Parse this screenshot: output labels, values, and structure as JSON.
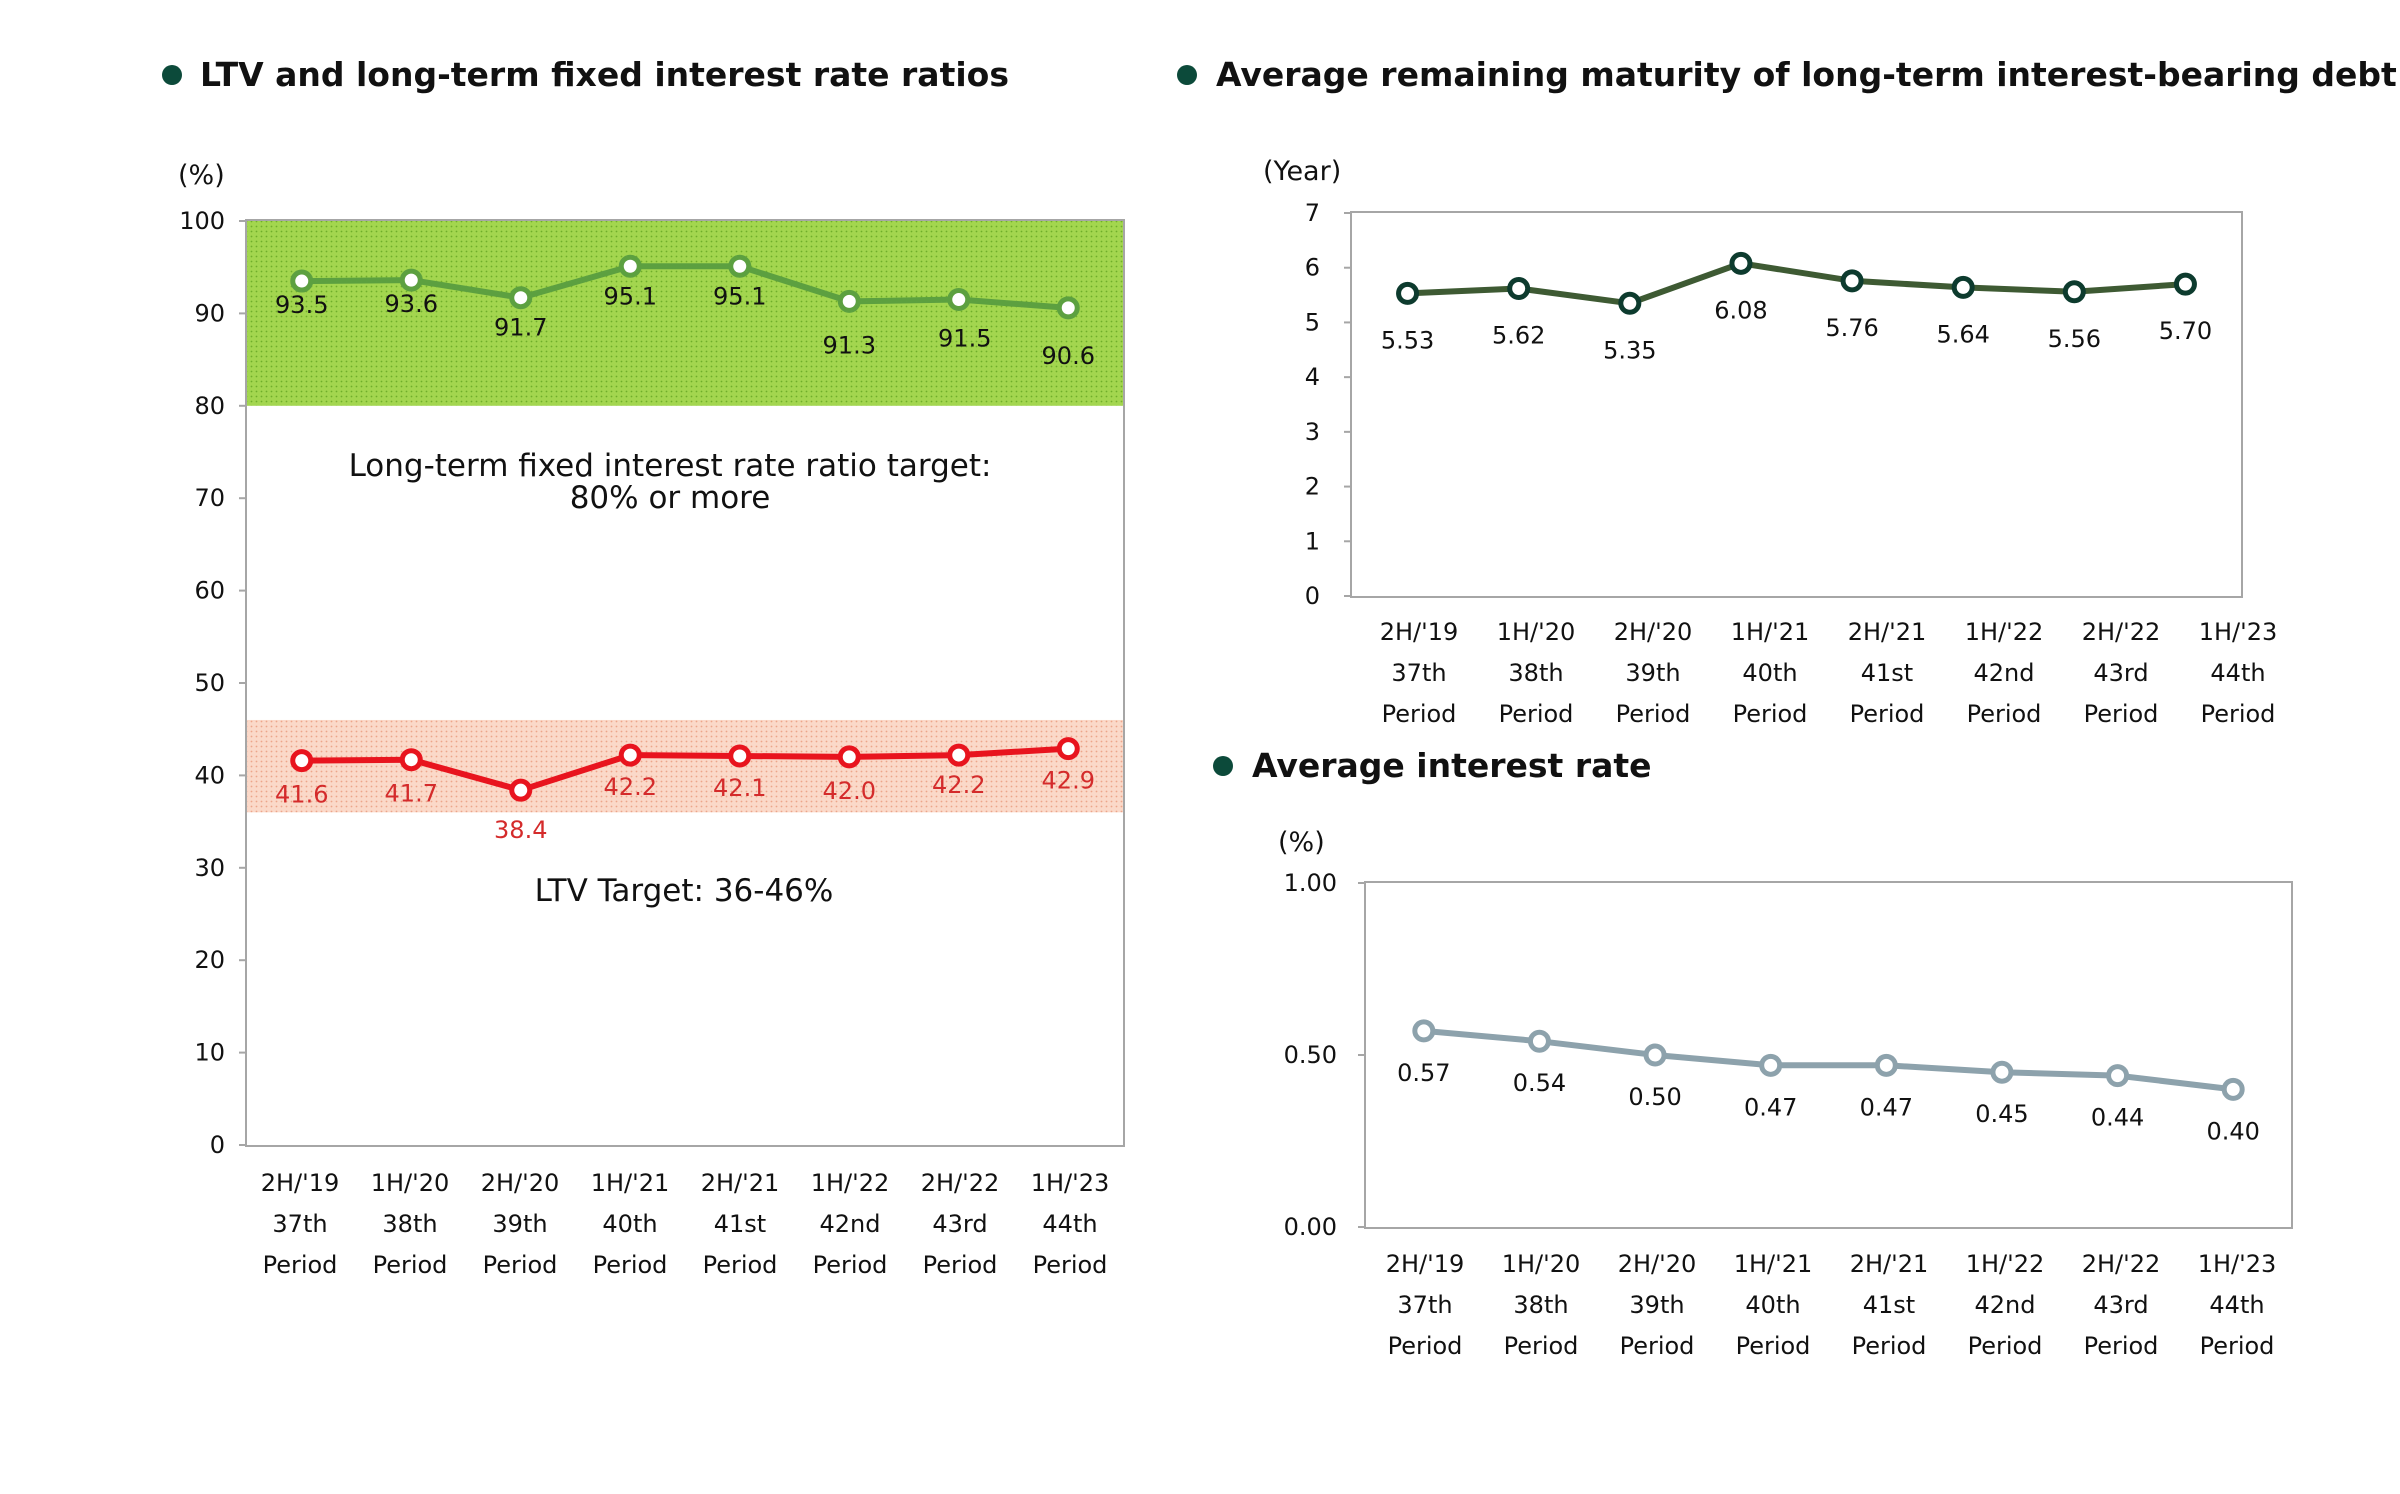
{
  "chart_data": [
    {
      "type": "line",
      "title": "LTV and long-term fixed interest rate ratios",
      "yunit": "(%)",
      "ylim": [
        0,
        100
      ],
      "yticks": [
        "0",
        "10",
        "20",
        "30",
        "40",
        "50",
        "60",
        "70",
        "80",
        "90",
        "100"
      ],
      "categories": [
        [
          "2H/'19",
          "37th",
          "Period"
        ],
        [
          "1H/'20",
          "38th",
          "Period"
        ],
        [
          "2H/'20",
          "39th",
          "Period"
        ],
        [
          "1H/'21",
          "40th",
          "Period"
        ],
        [
          "2H/'21",
          "41st",
          "Period"
        ],
        [
          "1H/'22",
          "42nd",
          "Period"
        ],
        [
          "2H/'22",
          "43rd",
          "Period"
        ],
        [
          "1H/'23",
          "44th",
          "Period"
        ]
      ],
      "series": [
        {
          "values": [
            93.5,
            93.6,
            91.7,
            95.1,
            95.1,
            91.3,
            91.5,
            90.6
          ],
          "labels": [
            "93.5",
            "93.6",
            "91.7",
            "95.1",
            "95.1",
            "91.3",
            "91.5",
            "90.6"
          ],
          "color": "#5ca040",
          "label_color": "#111111"
        },
        {
          "values": [
            41.6,
            41.7,
            38.4,
            42.2,
            42.1,
            42.0,
            42.2,
            42.9
          ],
          "labels": [
            "41.6",
            "41.7",
            "38.4",
            "42.2",
            "42.1",
            "42.0",
            "42.2",
            "42.9"
          ],
          "color": "#e8141e",
          "label_color": "#d42b2b"
        }
      ],
      "bands": [
        {
          "from": 80,
          "to": 100,
          "color": "#92cf3b"
        },
        {
          "from": 36,
          "to": 46,
          "color": "#f7c7b2"
        }
      ],
      "annotations": [
        "Long-term fixed interest rate ratio target:",
        "80% or more",
        "LTV Target: 36-46%"
      ],
      "grid": false
    },
    {
      "type": "line",
      "title": "Average remaining maturity of long-term interest-bearing debt",
      "yunit": "(Year)",
      "ylim": [
        0,
        7
      ],
      "yticks": [
        "0",
        "1",
        "2",
        "3",
        "4",
        "5",
        "6",
        "7"
      ],
      "categories": [
        [
          "2H/'19",
          "37th",
          "Period"
        ],
        [
          "1H/'20",
          "38th",
          "Period"
        ],
        [
          "2H/'20",
          "39th",
          "Period"
        ],
        [
          "1H/'21",
          "40th",
          "Period"
        ],
        [
          "2H/'21",
          "41st",
          "Period"
        ],
        [
          "1H/'22",
          "42nd",
          "Period"
        ],
        [
          "2H/'22",
          "43rd",
          "Period"
        ],
        [
          "1H/'23",
          "44th",
          "Period"
        ]
      ],
      "series": [
        {
          "values": [
            5.53,
            5.62,
            5.35,
            6.08,
            5.76,
            5.64,
            5.56,
            5.7
          ],
          "labels": [
            "5.53",
            "5.62",
            "5.35",
            "6.08",
            "5.76",
            "5.64",
            "5.56",
            "5.70"
          ],
          "color": "#3e5a33",
          "marker": "#0d3b2e"
        }
      ],
      "grid": false
    },
    {
      "type": "line",
      "title": "Average interest rate",
      "yunit": "(%)",
      "ylim": [
        0,
        1
      ],
      "yticks": [
        "0.00",
        "0.50",
        "1.00"
      ],
      "categories": [
        [
          "2H/'19",
          "37th",
          "Period"
        ],
        [
          "1H/'20",
          "38th",
          "Period"
        ],
        [
          "2H/'20",
          "39th",
          "Period"
        ],
        [
          "1H/'21",
          "40th",
          "Period"
        ],
        [
          "2H/'21",
          "41st",
          "Period"
        ],
        [
          "1H/'22",
          "42nd",
          "Period"
        ],
        [
          "2H/'22",
          "43rd",
          "Period"
        ],
        [
          "1H/'23",
          "44th",
          "Period"
        ]
      ],
      "series": [
        {
          "values": [
            0.57,
            0.54,
            0.5,
            0.47,
            0.47,
            0.45,
            0.44,
            0.4
          ],
          "labels": [
            "0.57",
            "0.54",
            "0.50",
            "0.47",
            "0.47",
            "0.45",
            "0.44",
            "0.40"
          ],
          "color": "#8da2ac",
          "marker": "#8da2ac"
        }
      ],
      "grid": false
    }
  ],
  "bullet_color": "#0c4a3a"
}
